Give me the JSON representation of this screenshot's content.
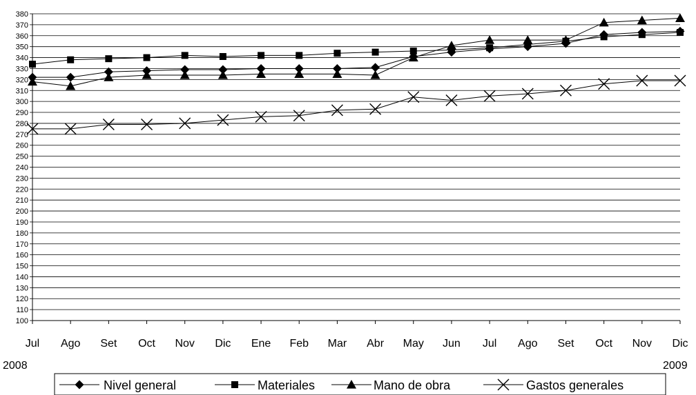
{
  "chart_data": {
    "type": "line",
    "categories": [
      "Jul",
      "Ago",
      "Set",
      "Oct",
      "Nov",
      "Dic",
      "Ene",
      "Feb",
      "Mar",
      "Abr",
      "May",
      "Jun",
      "Jul",
      "Ago",
      "Set",
      "Oct",
      "Nov",
      "Dic"
    ],
    "year_labels": {
      "start": "2008",
      "end": "2009"
    },
    "ylim": [
      100,
      380
    ],
    "ytick_step": 10,
    "grid": true,
    "legend_position": "bottom",
    "series": [
      {
        "name": "Nivel  general",
        "marker": "diamond",
        "values": [
          322,
          322,
          327,
          328,
          329,
          329,
          330,
          330,
          330,
          331,
          341,
          345,
          348,
          350,
          353,
          361,
          363,
          364
        ]
      },
      {
        "name": "Materiales",
        "marker": "square",
        "values": [
          334,
          338,
          339,
          340,
          342,
          341,
          342,
          342,
          344,
          345,
          346,
          347,
          349,
          352,
          355,
          359,
          361,
          363
        ]
      },
      {
        "name": "Mano de obra",
        "marker": "triangle",
        "values": [
          318,
          314,
          322,
          324,
          324,
          324,
          325,
          325,
          325,
          324,
          340,
          351,
          356,
          356,
          356,
          372,
          374,
          376
        ]
      },
      {
        "name": "Gastos generales",
        "marker": "x",
        "values": [
          275,
          275,
          279,
          279,
          280,
          283,
          286,
          287,
          292,
          293,
          304,
          301,
          305,
          307,
          310,
          316,
          319,
          319
        ]
      }
    ]
  }
}
